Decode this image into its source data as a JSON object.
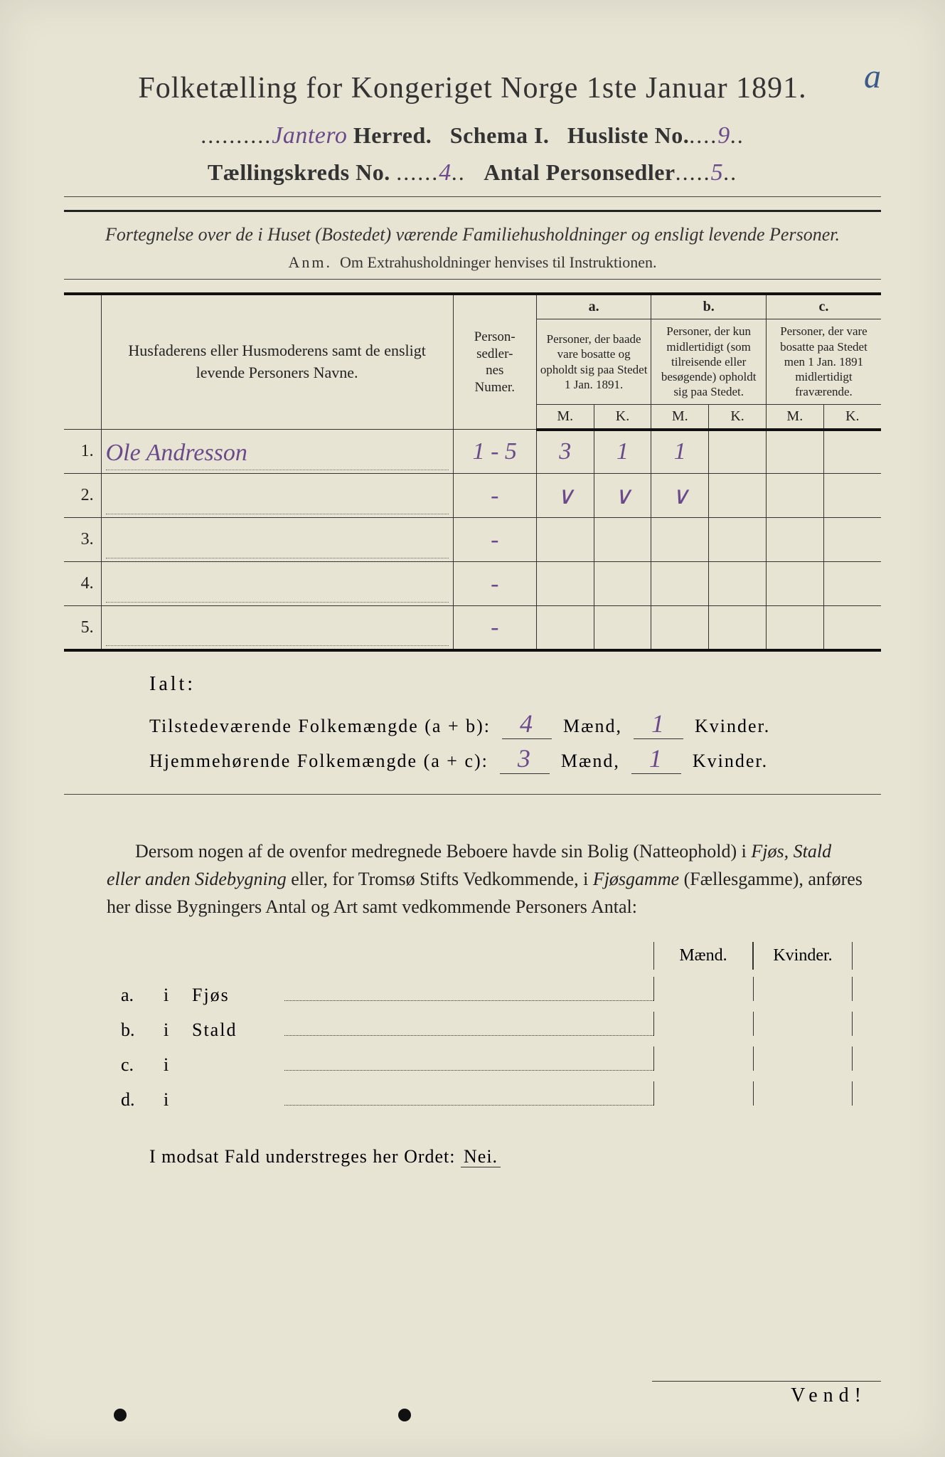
{
  "colors": {
    "paper": "#e8e4d4",
    "ink": "#333333",
    "handwriting": "#6a4a8a",
    "corner_mark": "#3a5a8a"
  },
  "corner_mark": "a",
  "title": "Folketælling for Kongeriget Norge 1ste Januar 1891.",
  "header": {
    "herred_hw": "Jantero",
    "herred_label": "Herred.",
    "schema_label": "Schema I.",
    "husliste_label": "Husliste No.",
    "husliste_no": "9",
    "kreds_label": "Tællingskreds No.",
    "kreds_no": "4",
    "antal_label": "Antal Personsedler",
    "antal_no": "5"
  },
  "subtitle": "Fortegnelse over de i Huset (Bostedet) værende Familiehusholdninger og ensligt levende Personer.",
  "anm_prefix": "Anm.",
  "anm_text": "Om Extrahusholdninger henvises til Instruktionen.",
  "table": {
    "col_names": "Husfaderens eller Husmoderens samt de ensligt levende Personers Navne.",
    "col_person": "Person-\nsedler-\nnes\nNumer.",
    "a_label": "a.",
    "a_text": "Personer, der baade vare bosatte og opholdt sig paa Stedet 1 Jan. 1891.",
    "b_label": "b.",
    "b_text": "Personer, der kun midlertidigt (som tilreisende eller besøgende) opholdt sig paa Stedet.",
    "c_label": "c.",
    "c_text": "Personer, der vare bosatte paa Stedet men 1 Jan. 1891 midlertidigt fraværende.",
    "m": "M.",
    "k": "K.",
    "rows": [
      {
        "n": "1.",
        "name": "Ole Andresson",
        "person": "1 - 5",
        "a_m": "3",
        "a_k": "1",
        "b_m": "1",
        "b_k": "",
        "c_m": "",
        "c_k": ""
      },
      {
        "n": "2.",
        "name": "",
        "person": "-",
        "a_m": "∨",
        "a_k": "∨",
        "b_m": "∨",
        "b_k": "",
        "c_m": "",
        "c_k": ""
      },
      {
        "n": "3.",
        "name": "",
        "person": "-",
        "a_m": "",
        "a_k": "",
        "b_m": "",
        "b_k": "",
        "c_m": "",
        "c_k": ""
      },
      {
        "n": "4.",
        "name": "",
        "person": "-",
        "a_m": "",
        "a_k": "",
        "b_m": "",
        "b_k": "",
        "c_m": "",
        "c_k": ""
      },
      {
        "n": "5.",
        "name": "",
        "person": "-",
        "a_m": "",
        "a_k": "",
        "b_m": "",
        "b_k": "",
        "c_m": "",
        "c_k": ""
      }
    ]
  },
  "ialt": {
    "label": "Ialt:",
    "line1_label": "Tilstedeværende Folkemængde (a + b):",
    "line1_m": "4",
    "line1_k": "1",
    "line2_label": "Hjemmehørende Folkemængde (a + c):",
    "line2_m": "3",
    "line2_k": "1",
    "maend": "Mænd,",
    "kvinder": "Kvinder."
  },
  "paragraph": "Dersom nogen af de ovenfor medregnede Beboere havde sin Bolig (Natteophold) i Fjøs, Stald eller anden Sidebygning eller, for Tromsø Stifts Vedkommende, i Fjøsgamme (Fællesgamme), anføres her disse Bygningers Antal og Art samt vedkommende Personers Antal:",
  "mk_headers": {
    "m": "Mænd.",
    "k": "Kvinder."
  },
  "abcd": [
    {
      "lead": "a.",
      "i": "i",
      "label": "Fjøs"
    },
    {
      "lead": "b.",
      "i": "i",
      "label": "Stald"
    },
    {
      "lead": "c.",
      "i": "i",
      "label": ""
    },
    {
      "lead": "d.",
      "i": "i",
      "label": ""
    }
  ],
  "modsat": "I modsat Fald understreges her Ordet:",
  "nei": "Nei.",
  "vend": "Vend!"
}
